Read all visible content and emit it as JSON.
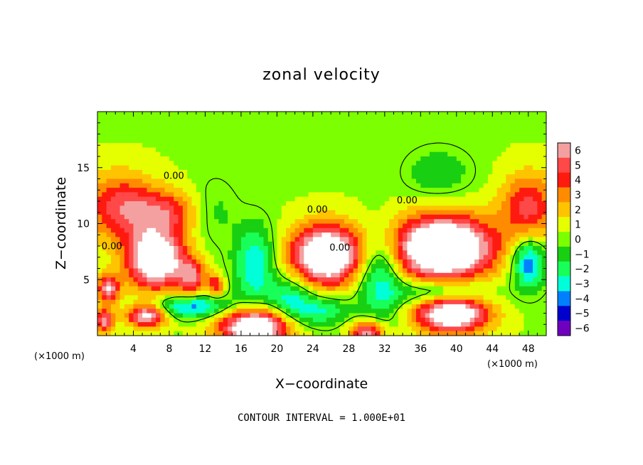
{
  "chart_data": {
    "type": "heatmap",
    "title": "zonal velocity",
    "xlabel": "X−coordinate",
    "ylabel": "Z−coordinate",
    "x_unit_left": "(×1000 m)",
    "x_unit_right": "(×1000 m)",
    "xlim": [
      0,
      50
    ],
    "ylim": [
      0,
      20
    ],
    "xticks": [
      4,
      8,
      12,
      16,
      20,
      24,
      28,
      32,
      36,
      40,
      44,
      48
    ],
    "yticks": [
      5,
      10,
      15
    ],
    "contour_note": "CONTOUR INTERVAL = 1.000E+01",
    "colorbar": {
      "levels": [
        6,
        5,
        4,
        3,
        2,
        1,
        0,
        -1,
        -2,
        -3,
        -4,
        -5,
        -6
      ],
      "labels": [
        "6",
        "5",
        "4",
        "3",
        "2",
        "1",
        "0",
        "−1",
        "−2",
        "−3",
        "−4",
        "−5",
        "−6"
      ],
      "colors": [
        "#f4a0a0",
        "#ff4848",
        "#ff1a10",
        "#ff8c00",
        "#ffc400",
        "#e6ff00",
        "#7cff00",
        "#19cf12",
        "#19ff5a",
        "#00ffd8",
        "#0080ff",
        "#0000cc",
        "#7000c0"
      ]
    },
    "contour_labels": [
      {
        "text": "0.00",
        "x": 8.5,
        "z": 14.0
      },
      {
        "text": "0.00",
        "x": 1.6,
        "z": 7.7
      },
      {
        "text": "0.00",
        "x": 24.5,
        "z": 11.0
      },
      {
        "text": "0.00",
        "x": 27.0,
        "z": 7.6
      },
      {
        "text": "0.00",
        "x": 34.5,
        "z": 11.8
      }
    ],
    "features": [
      {
        "kind": "pos",
        "x": 2.5,
        "z": 11.5,
        "rx": 4,
        "rz": 3,
        "amp": 4.5
      },
      {
        "kind": "pos",
        "x": 7.5,
        "z": 11.0,
        "rx": 3.5,
        "rz": 2,
        "amp": 3.8
      },
      {
        "kind": "pos",
        "x": 48,
        "z": 11.5,
        "rx": 3,
        "rz": 3,
        "amp": 4.5
      },
      {
        "kind": "pos",
        "x": 6.5,
        "z": 6.8,
        "rx": 3.2,
        "rz": 2.6,
        "amp": 9
      },
      {
        "kind": "pos",
        "x": 10.5,
        "z": 5.2,
        "rx": 1.6,
        "rz": 1.6,
        "amp": 4.5
      },
      {
        "kind": "pos",
        "x": 13.2,
        "z": 4.5,
        "rx": 0.9,
        "rz": 1.0,
        "amp": 4
      },
      {
        "kind": "pos",
        "x": 25.5,
        "z": 7.2,
        "rx": 3.8,
        "rz": 2.6,
        "amp": 10
      },
      {
        "kind": "pos",
        "x": 38.5,
        "z": 7.8,
        "rx": 5.5,
        "rz": 2.8,
        "amp": 11
      },
      {
        "kind": "pos",
        "x": 17.5,
        "z": 0.8,
        "rx": 3.8,
        "rz": 1.7,
        "amp": 9
      },
      {
        "kind": "pos",
        "x": 30,
        "z": 0.3,
        "rx": 1.8,
        "rz": 1.0,
        "amp": 6
      },
      {
        "kind": "pos",
        "x": 39.5,
        "z": 2.0,
        "rx": 4,
        "rz": 1.7,
        "amp": 9
      },
      {
        "kind": "pos",
        "x": 5.5,
        "z": 1.8,
        "rx": 2.2,
        "rz": 1.0,
        "amp": 7
      },
      {
        "kind": "pos",
        "x": 0.8,
        "z": 1.3,
        "rx": 1.0,
        "rz": 1.0,
        "amp": 6
      },
      {
        "kind": "pos",
        "x": 1.2,
        "z": 4.2,
        "rx": 1.2,
        "rz": 1.3,
        "amp": 6
      },
      {
        "kind": "neg",
        "x": 17.5,
        "z": 6.2,
        "rx": 2.2,
        "rz": 3.5,
        "amp": 4
      },
      {
        "kind": "neg",
        "x": 21.5,
        "z": 3.2,
        "rx": 2.5,
        "rz": 2.0,
        "amp": 3.5
      },
      {
        "kind": "neg",
        "x": 10.5,
        "z": 2.6,
        "rx": 4.5,
        "rz": 1.0,
        "amp": 4.5
      },
      {
        "kind": "neg",
        "x": 31.5,
        "z": 5.5,
        "rx": 2.5,
        "rz": 3.8,
        "amp": 4
      },
      {
        "kind": "neg",
        "x": 38.5,
        "z": 3.8,
        "rx": 5,
        "rz": 1.2,
        "amp": 4
      },
      {
        "kind": "neg",
        "x": 48,
        "z": 6.5,
        "rx": 1.8,
        "rz": 2.3,
        "amp": 5
      },
      {
        "kind": "neg",
        "x": 25,
        "z": 2.2,
        "rx": 3,
        "rz": 1.3,
        "amp": 3
      },
      {
        "kind": "neg",
        "x": 38,
        "z": 14.5,
        "rx": 3.5,
        "rz": 2.2,
        "amp": 1.8
      },
      {
        "kind": "neg",
        "x": 13,
        "z": 11,
        "rx": 2.5,
        "rz": 3,
        "amp": 1.2
      }
    ]
  }
}
